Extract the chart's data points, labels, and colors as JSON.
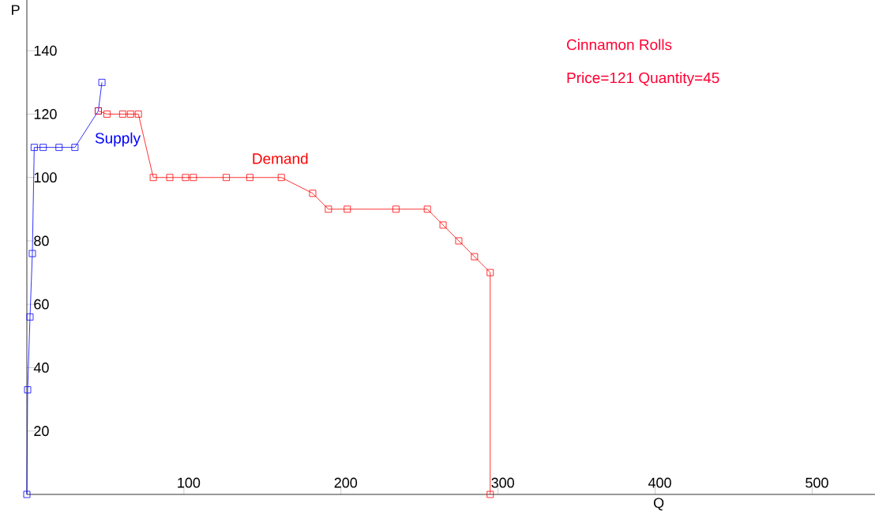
{
  "chart_data": {
    "type": "line",
    "title": "Cinnamon Rolls",
    "annotations": [
      "Price=121   Quantity=45"
    ],
    "xlabel": "Q",
    "ylabel": "P",
    "xlim": [
      0,
      540
    ],
    "ylim": [
      0,
      156
    ],
    "xticks": [
      100,
      200,
      300,
      400,
      500
    ],
    "yticks": [
      20,
      40,
      60,
      80,
      100,
      120,
      140
    ],
    "marker": "square",
    "line_style": "solid",
    "series": [
      {
        "name": "Supply",
        "color": "#0000ff",
        "x": [
          0,
          0.5,
          2,
          3.5,
          4.7,
          10.4,
          20.5,
          30.6,
          45.5,
          47.8
        ],
        "values": [
          0,
          33,
          56,
          76,
          109.5,
          109.5,
          109.5,
          109.5,
          121,
          130
        ]
      },
      {
        "name": "Demand",
        "color": "#ff0000",
        "x": [
          45.5,
          51,
          61,
          66,
          71,
          80.5,
          91,
          101,
          106,
          127,
          142,
          162,
          182,
          192,
          204,
          235,
          255,
          265,
          275,
          285,
          295,
          295
        ],
        "values": [
          121,
          120,
          120,
          120,
          120,
          100,
          100,
          100,
          100,
          100,
          100,
          100,
          95,
          90,
          90,
          90,
          90,
          85,
          80,
          75,
          70,
          0
        ]
      }
    ]
  }
}
